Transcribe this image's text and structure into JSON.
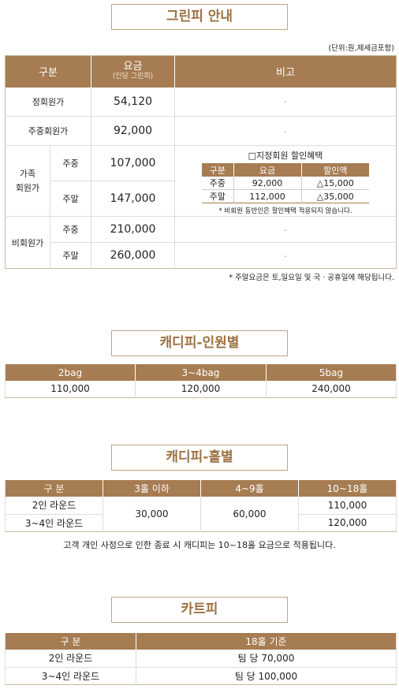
{
  "greenfee": {
    "title": "그린피 안내",
    "unit_note": "(단위:원,제세금포함)",
    "headers": {
      "category": "구분",
      "fee": "요금",
      "fee_sub": "(인당 그린피)",
      "remarks": "비고"
    },
    "rows": {
      "regular": {
        "label": "정회원가",
        "fee": "54,120",
        "remark": "-"
      },
      "weekday_member": {
        "label": "주중회원가",
        "fee": "92,000",
        "remark": "-"
      },
      "family": {
        "label": "가족\n회원가",
        "weekday_label": "주중",
        "weekday_fee": "107,000",
        "weekend_label": "주말",
        "weekend_fee": "147,000"
      },
      "nonmember": {
        "label": "비회원가",
        "weekday_label": "주중",
        "weekday_fee": "210,000",
        "weekday_remark": "-",
        "weekend_label": "주말",
        "weekend_fee": "260,000",
        "weekend_remark": "-"
      }
    },
    "discount": {
      "title": "□지정회원 할인혜택",
      "headers": [
        "구분",
        "요금",
        "할인액"
      ],
      "rows": [
        {
          "type": "주중",
          "fee": "92,000",
          "discount": "△15,000"
        },
        {
          "type": "주말",
          "fee": "112,000",
          "discount": "△35,000"
        }
      ],
      "note": "* 비회원 동반인은 할인혜택 적용되지 않습니다."
    },
    "footnote": "* 주말요금은 토,일요일 및 국 · 공휴일에 해당됩니다."
  },
  "caddie_people": {
    "title": "캐디피-인원별",
    "headers": [
      "2bag",
      "3~4bag",
      "5bag"
    ],
    "values": [
      "110,000",
      "120,000",
      "240,000"
    ]
  },
  "caddie_holes": {
    "title": "캐디피-홀별",
    "headers": [
      "구 분",
      "3홀 이하",
      "4~9홀",
      "10~18홀"
    ],
    "rows": [
      {
        "label": "2인 라운드",
        "h18": "110,000"
      },
      {
        "label": "3~4인 라운드",
        "h18": "120,000"
      }
    ],
    "h3": "30,000",
    "h9": "60,000",
    "note": "고객 개인 사정으로 인한 종료 시 캐디피는 10~18홀 요금으로 적용됩니다."
  },
  "cart": {
    "title": "카트피",
    "headers": [
      "구 분",
      "18홀 기준"
    ],
    "rows": [
      {
        "label": "2인 라운드",
        "value": "팀 당 70,000"
      },
      {
        "label": "3~4인 라운드",
        "value": "팀 당 100,000"
      }
    ]
  }
}
